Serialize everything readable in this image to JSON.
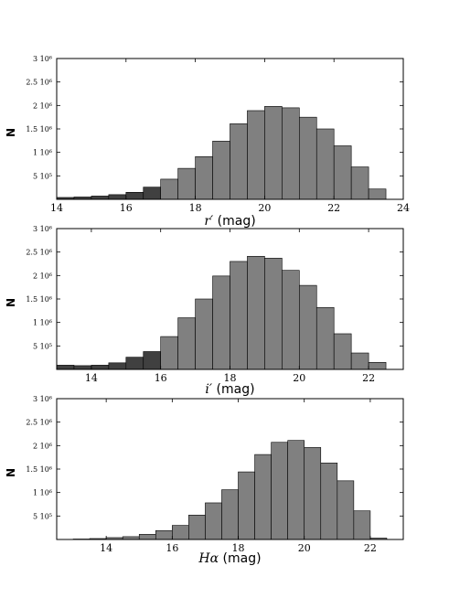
{
  "chart_data": [
    {
      "type": "bar",
      "xlabel_symbol": "r′",
      "xlabel_unit": " (mag)",
      "ylabel": "N",
      "xlim": [
        14,
        24
      ],
      "ylim": [
        0,
        3000000
      ],
      "xticks": [
        "14",
        "16",
        "18",
        "20",
        "22",
        "24"
      ],
      "xtick_values": [
        14,
        16,
        18,
        20,
        22,
        24
      ],
      "yticks": [
        {
          "label": "5 10⁵",
          "value": 500000
        },
        {
          "label": "1 10⁶",
          "value": 1000000
        },
        {
          "label": "1.5 10⁶",
          "value": 1500000
        },
        {
          "label": "2 10⁶",
          "value": 2000000
        },
        {
          "label": "2.5 10⁶",
          "value": 2500000
        },
        {
          "label": "3 10⁶",
          "value": 3000000
        }
      ],
      "bin_edges": [
        14.0,
        14.5,
        15.0,
        15.5,
        16.0,
        16.5,
        17.0,
        17.5,
        18.0,
        18.5,
        19.0,
        19.5,
        20.0,
        20.5,
        21.0,
        21.5,
        22.0,
        22.5,
        23.0,
        23.5
      ],
      "series": [
        {
          "color": "#404040",
          "values": [
            40000,
            50000,
            70000,
            100000,
            150000,
            260000,
            null,
            null,
            null,
            null,
            null,
            null,
            null,
            null,
            null,
            null,
            null,
            null,
            null
          ]
        },
        {
          "color": "#808080",
          "values": [
            null,
            null,
            null,
            null,
            null,
            null,
            430000,
            660000,
            910000,
            1240000,
            1610000,
            1890000,
            1980000,
            1950000,
            1750000,
            1500000,
            1140000,
            690000,
            220000
          ]
        }
      ]
    },
    {
      "type": "bar",
      "xlabel_symbol": "i′",
      "xlabel_unit": " (mag)",
      "ylabel": "N",
      "xlim": [
        13.0,
        23.0
      ],
      "ylim": [
        0,
        3000000
      ],
      "xticks": [
        "14",
        "16",
        "18",
        "20",
        "22"
      ],
      "xtick_values": [
        14,
        16,
        18,
        20,
        22
      ],
      "yticks": [
        {
          "label": "5 10⁵",
          "value": 500000
        },
        {
          "label": "1 10⁶",
          "value": 1000000
        },
        {
          "label": "1.5 10⁶",
          "value": 1500000
        },
        {
          "label": "2 10⁶",
          "value": 2000000
        },
        {
          "label": "2.5 10⁶",
          "value": 2500000
        },
        {
          "label": "3 10⁶",
          "value": 3000000
        }
      ],
      "bin_edges": [
        13.0,
        13.5,
        14.0,
        14.5,
        15.0,
        15.5,
        16.0,
        16.5,
        17.0,
        17.5,
        18.0,
        18.5,
        19.0,
        19.5,
        20.0,
        20.5,
        21.0,
        21.5,
        22.0,
        22.5
      ],
      "series": [
        {
          "color": "#404040",
          "values": [
            90000,
            80000,
            90000,
            140000,
            260000,
            380000,
            null,
            null,
            null,
            null,
            null,
            null,
            null,
            null,
            null,
            null,
            null,
            null,
            null
          ]
        },
        {
          "color": "#808080",
          "values": [
            null,
            null,
            null,
            null,
            null,
            null,
            700000,
            1100000,
            1500000,
            1990000,
            2300000,
            2410000,
            2370000,
            2110000,
            1790000,
            1320000,
            760000,
            350000,
            150000
          ]
        }
      ]
    },
    {
      "type": "bar",
      "xlabel_symbol": "Hα",
      "xlabel_unit": " (mag)",
      "ylabel": "N",
      "xlim": [
        12.5,
        23.0
      ],
      "ylim": [
        0,
        3000000
      ],
      "xticks": [
        "14",
        "16",
        "18",
        "20",
        "22"
      ],
      "xtick_values": [
        14,
        16,
        18,
        20,
        22
      ],
      "yticks": [
        {
          "label": "5 10⁵",
          "value": 500000
        },
        {
          "label": "1 10⁶",
          "value": 1000000
        },
        {
          "label": "1.5 10⁶",
          "value": 1500000
        },
        {
          "label": "2 10⁶",
          "value": 2000000
        },
        {
          "label": "2.5 10⁶",
          "value": 2500000
        },
        {
          "label": "3 10⁶",
          "value": 3000000
        }
      ],
      "bin_edges": [
        13.0,
        13.5,
        14.0,
        14.5,
        15.0,
        15.5,
        16.0,
        16.5,
        17.0,
        17.5,
        18.0,
        18.5,
        19.0,
        19.5,
        20.0,
        20.5,
        21.0,
        21.5,
        22.0,
        22.5
      ],
      "series": [
        {
          "color": "#808080",
          "values": [
            10000,
            20000,
            40000,
            60000,
            110000,
            190000,
            300000,
            520000,
            780000,
            1060000,
            1440000,
            1810000,
            2070000,
            2110000,
            1960000,
            1630000,
            1250000,
            610000,
            30000
          ]
        }
      ]
    }
  ]
}
